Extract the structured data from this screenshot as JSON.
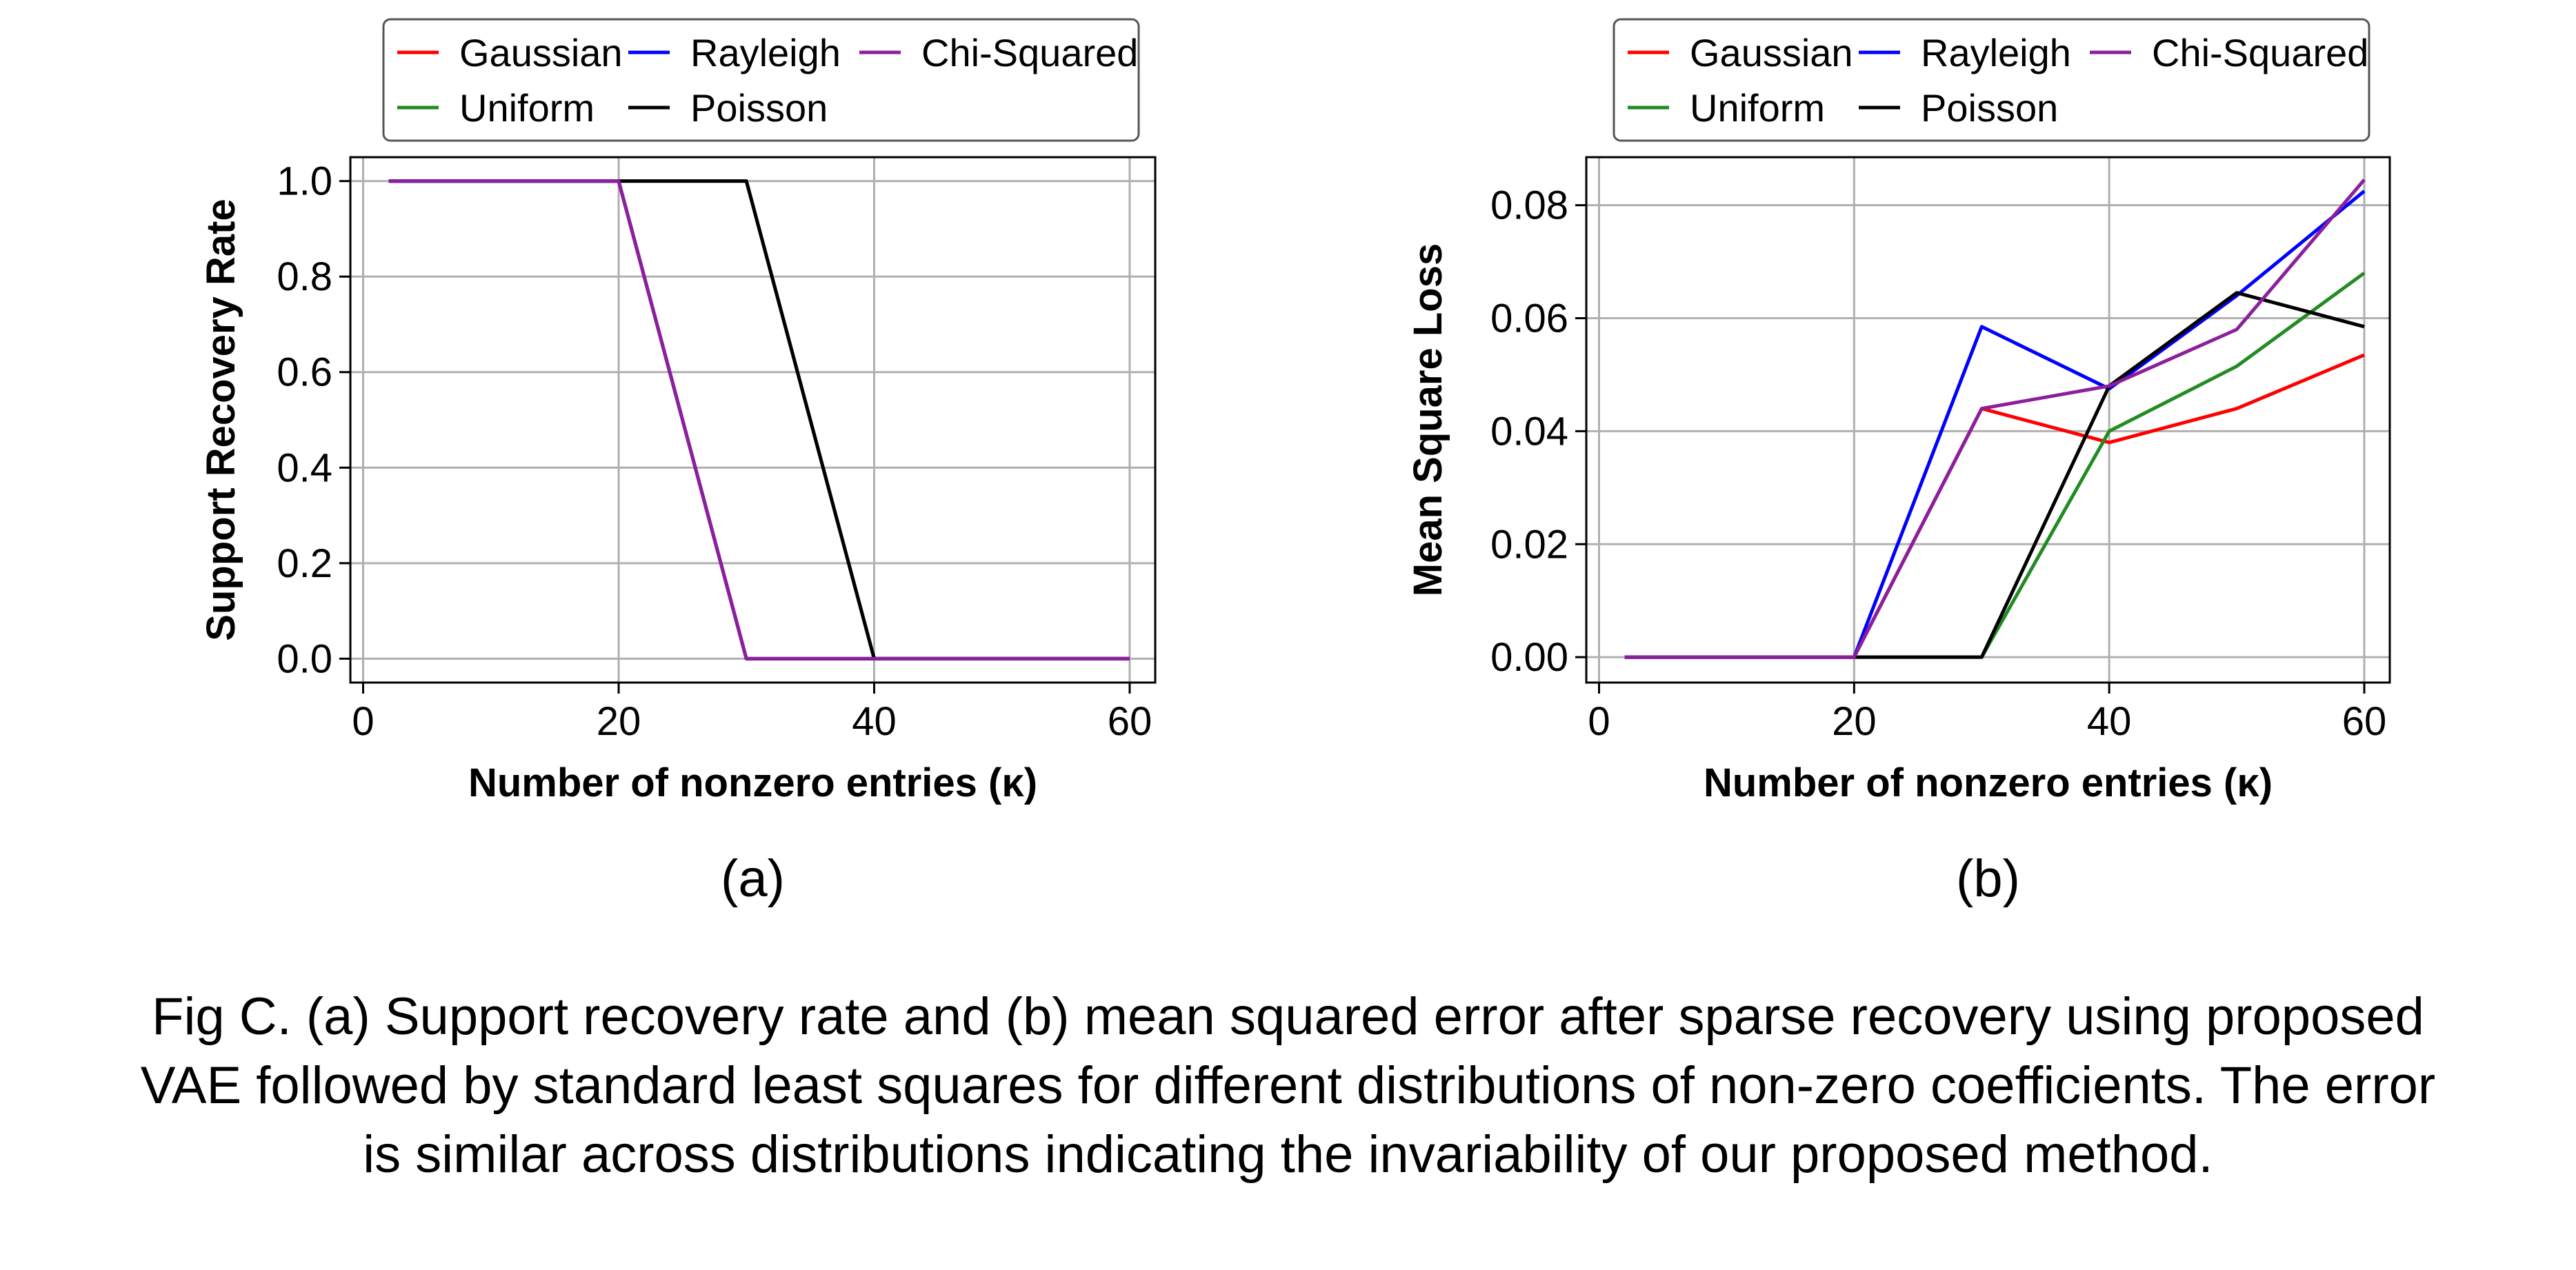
{
  "figure": {
    "caption_lines": [
      "Fig C. (a) Support recovery rate and (b) mean squared error after sparse recovery using proposed",
      "VAE followed by standard least squares for different distributions of non-zero coefficients. The error",
      "is similar across distributions indicating the invariability of our proposed method."
    ]
  },
  "series_colors": {
    "Gaussian": "#ff0000",
    "Uniform": "#228b22",
    "Rayleigh": "#0000ff",
    "Poisson": "#000000",
    "Chi-Squared": "#8b1f9c"
  },
  "chart_data": [
    {
      "type": "line",
      "panel_label": "(a)",
      "xlabel": "Number of nonzero entries (κ)",
      "ylabel": "Support Recovery Rate",
      "xlim": [
        -1,
        62
      ],
      "ylim": [
        -0.05,
        1.05
      ],
      "xticks": [
        0,
        20,
        40,
        60
      ],
      "yticks": [
        0.0,
        0.2,
        0.4,
        0.6,
        0.8,
        1.0
      ],
      "ytick_labels": [
        "0.0",
        "0.2",
        "0.4",
        "0.6",
        "0.8",
        "1.0"
      ],
      "xtick_labels": [
        "0",
        "20",
        "40",
        "60"
      ],
      "grid": true,
      "legend_position": "top-center",
      "legend_rows": [
        [
          "Gaussian",
          "Rayleigh",
          "Chi-Squared"
        ],
        [
          "Uniform",
          "Poisson"
        ]
      ],
      "x": [
        2,
        20,
        30,
        40,
        50,
        60
      ],
      "series": [
        {
          "name": "Gaussian",
          "values": [
            1.0,
            1.0,
            0.0,
            0.0,
            0.0,
            0.0
          ]
        },
        {
          "name": "Uniform",
          "values": [
            1.0,
            1.0,
            1.0,
            0.0,
            0.0,
            0.0
          ]
        },
        {
          "name": "Rayleigh",
          "values": [
            1.0,
            1.0,
            0.0,
            0.0,
            0.0,
            0.0
          ]
        },
        {
          "name": "Poisson",
          "values": [
            1.0,
            1.0,
            1.0,
            0.0,
            0.0,
            0.0
          ]
        },
        {
          "name": "Chi-Squared",
          "values": [
            1.0,
            1.0,
            0.0,
            0.0,
            0.0,
            0.0
          ]
        }
      ]
    },
    {
      "type": "line",
      "panel_label": "(b)",
      "xlabel": "Number of nonzero entries (κ)",
      "ylabel": "Mean Square Loss",
      "xlim": [
        -1,
        62
      ],
      "ylim": [
        -0.0045,
        0.0885
      ],
      "xticks": [
        0,
        20,
        40,
        60
      ],
      "yticks": [
        0.0,
        0.02,
        0.04,
        0.06,
        0.08
      ],
      "ytick_labels": [
        "0.00",
        "0.02",
        "0.04",
        "0.06",
        "0.08"
      ],
      "xtick_labels": [
        "0",
        "20",
        "40",
        "60"
      ],
      "grid": true,
      "legend_position": "top-center",
      "legend_rows": [
        [
          "Gaussian",
          "Rayleigh",
          "Chi-Squared"
        ],
        [
          "Uniform",
          "Poisson"
        ]
      ],
      "x": [
        2,
        20,
        30,
        40,
        50,
        60
      ],
      "series": [
        {
          "name": "Gaussian",
          "values": [
            0.0,
            0.0,
            0.044,
            0.038,
            0.044,
            0.0535
          ]
        },
        {
          "name": "Uniform",
          "values": [
            0.0,
            0.0,
            0.0,
            0.04,
            0.0515,
            0.068
          ]
        },
        {
          "name": "Rayleigh",
          "values": [
            0.0,
            0.0,
            0.0585,
            0.0475,
            0.064,
            0.0825
          ]
        },
        {
          "name": "Poisson",
          "values": [
            0.0,
            0.0,
            0.0,
            0.048,
            0.0645,
            0.0585
          ]
        },
        {
          "name": "Chi-Squared",
          "values": [
            0.0,
            0.0,
            0.044,
            0.048,
            0.058,
            0.0845
          ]
        }
      ]
    }
  ]
}
